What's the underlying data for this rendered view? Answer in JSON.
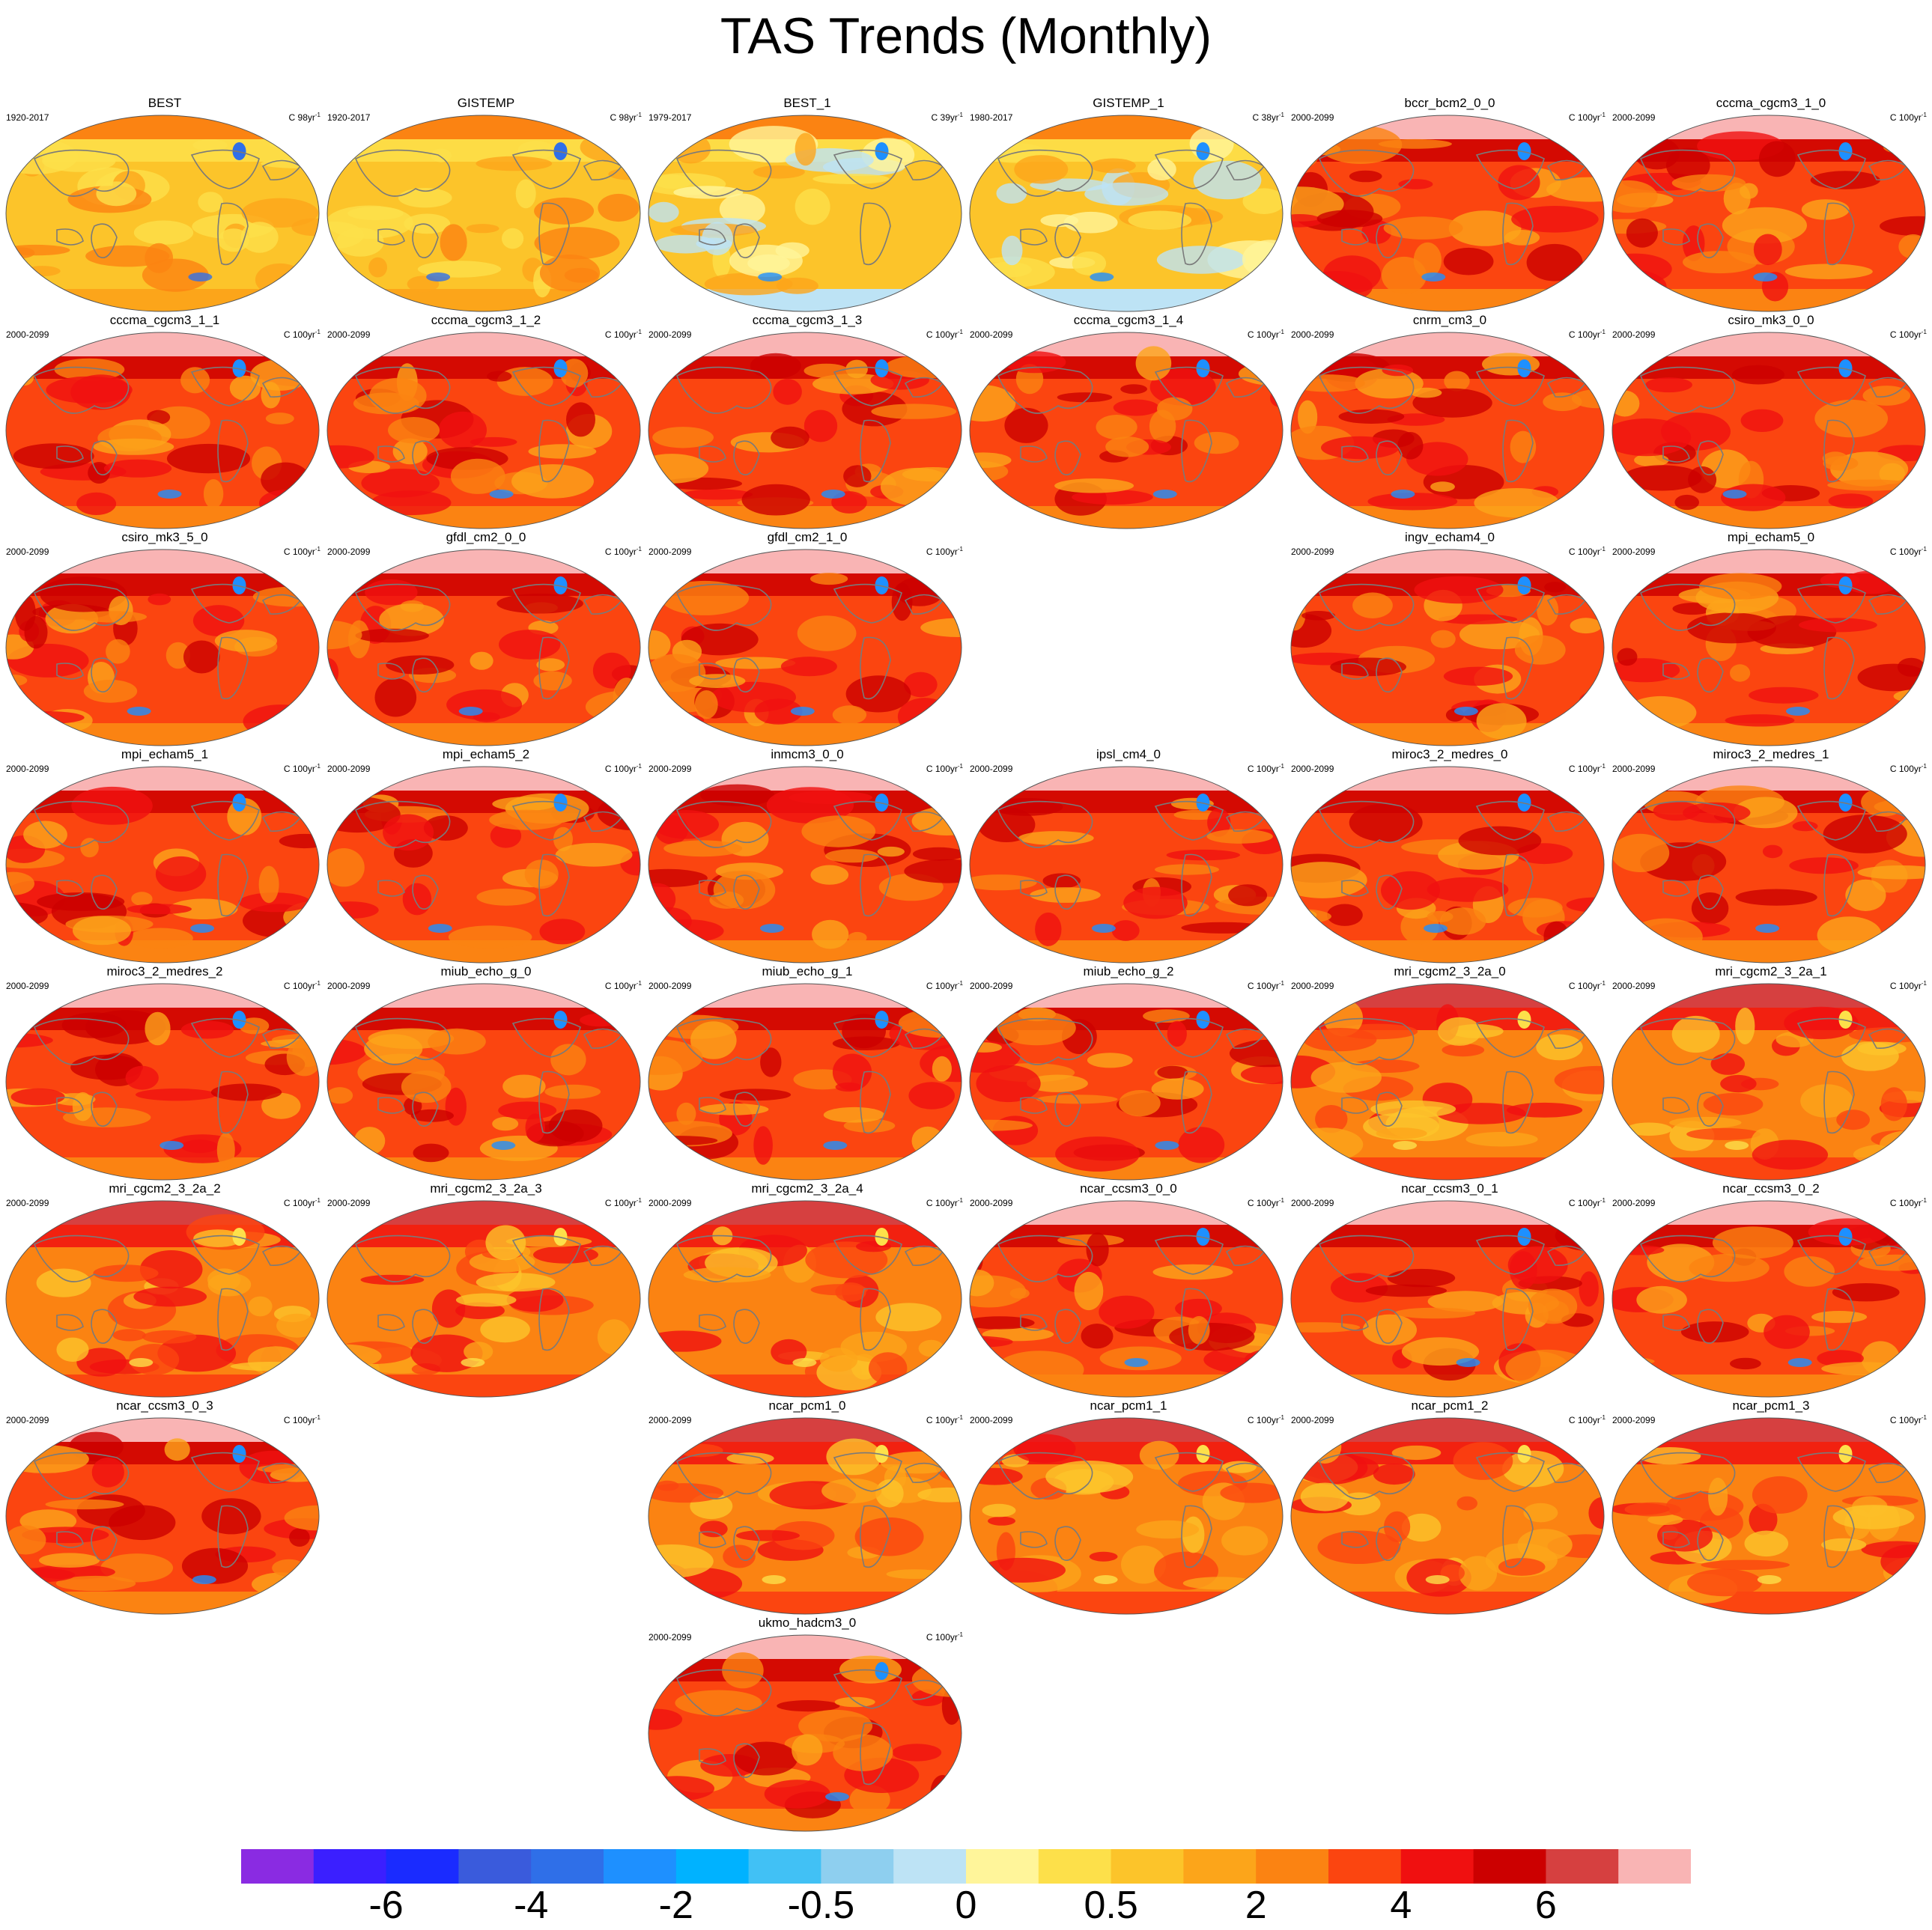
{
  "title": "TAS Trends (Monthly)",
  "panels": [
    {
      "name": "BEST",
      "period": "1920-2017",
      "units": "C 98yr",
      "palette": "obs"
    },
    {
      "name": "GISTEMP",
      "period": "1920-2017",
      "units": "C 98yr",
      "palette": "obs"
    },
    {
      "name": "BEST_1",
      "period": "1979-2017",
      "units": "C 39yr",
      "palette": "obs_recent"
    },
    {
      "name": "GISTEMP_1",
      "period": "1980-2017",
      "units": "C 38yr",
      "palette": "obs_recent"
    },
    {
      "name": "bccr_bcm2_0_0",
      "period": "2000-2099",
      "units": "C 100yr",
      "palette": "model"
    },
    {
      "name": "cccma_cgcm3_1_0",
      "period": "2000-2099",
      "units": "C 100yr",
      "palette": "model"
    },
    {
      "name": "cccma_cgcm3_1_1",
      "period": "2000-2099",
      "units": "C 100yr",
      "palette": "model"
    },
    {
      "name": "cccma_cgcm3_1_2",
      "period": "2000-2099",
      "units": "C 100yr",
      "palette": "model"
    },
    {
      "name": "cccma_cgcm3_1_3",
      "period": "2000-2099",
      "units": "C 100yr",
      "palette": "model"
    },
    {
      "name": "cccma_cgcm3_1_4",
      "period": "2000-2099",
      "units": "C 100yr",
      "palette": "model"
    },
    {
      "name": "cnrm_cm3_0",
      "period": "2000-2099",
      "units": "C 100yr",
      "palette": "model"
    },
    {
      "name": "csiro_mk3_0_0",
      "period": "2000-2099",
      "units": "C 100yr",
      "palette": "model"
    },
    {
      "name": "csiro_mk3_5_0",
      "period": "2000-2099",
      "units": "C 100yr",
      "palette": "model"
    },
    {
      "name": "gfdl_cm2_0_0",
      "period": "2000-2099",
      "units": "C 100yr",
      "palette": "model"
    },
    {
      "name": "gfdl_cm2_1_0",
      "period": "2000-2099",
      "units": "C 100yr",
      "palette": "model"
    },
    {
      "name": "",
      "period": "",
      "units": "",
      "palette": "empty"
    },
    {
      "name": "ingv_echam4_0",
      "period": "2000-2099",
      "units": "C 100yr",
      "palette": "model"
    },
    {
      "name": "mpi_echam5_0",
      "period": "2000-2099",
      "units": "C 100yr",
      "palette": "model"
    },
    {
      "name": "mpi_echam5_1",
      "period": "2000-2099",
      "units": "C 100yr",
      "palette": "model"
    },
    {
      "name": "mpi_echam5_2",
      "period": "2000-2099",
      "units": "C 100yr",
      "palette": "model"
    },
    {
      "name": "inmcm3_0_0",
      "period": "2000-2099",
      "units": "C 100yr",
      "palette": "model"
    },
    {
      "name": "ipsl_cm4_0",
      "period": "2000-2099",
      "units": "C 100yr",
      "palette": "model"
    },
    {
      "name": "miroc3_2_medres_0",
      "period": "2000-2099",
      "units": "C 100yr",
      "palette": "model"
    },
    {
      "name": "miroc3_2_medres_1",
      "period": "2000-2099",
      "units": "C 100yr",
      "palette": "model"
    },
    {
      "name": "miroc3_2_medres_2",
      "period": "2000-2099",
      "units": "C 100yr",
      "palette": "model"
    },
    {
      "name": "miub_echo_g_0",
      "period": "2000-2099",
      "units": "C 100yr",
      "palette": "model"
    },
    {
      "name": "miub_echo_g_1",
      "period": "2000-2099",
      "units": "C 100yr",
      "palette": "model"
    },
    {
      "name": "miub_echo_g_2",
      "period": "2000-2099",
      "units": "C 100yr",
      "palette": "model"
    },
    {
      "name": "mri_cgcm2_3_2a_0",
      "period": "2000-2099",
      "units": "C 100yr",
      "palette": "model_mild"
    },
    {
      "name": "mri_cgcm2_3_2a_1",
      "period": "2000-2099",
      "units": "C 100yr",
      "palette": "model_mild"
    },
    {
      "name": "mri_cgcm2_3_2a_2",
      "period": "2000-2099",
      "units": "C 100yr",
      "palette": "model_mild"
    },
    {
      "name": "mri_cgcm2_3_2a_3",
      "period": "2000-2099",
      "units": "C 100yr",
      "palette": "model_mild"
    },
    {
      "name": "mri_cgcm2_3_2a_4",
      "period": "2000-2099",
      "units": "C 100yr",
      "palette": "model_mild"
    },
    {
      "name": "ncar_ccsm3_0_0",
      "period": "2000-2099",
      "units": "C 100yr",
      "palette": "model"
    },
    {
      "name": "ncar_ccsm3_0_1",
      "period": "2000-2099",
      "units": "C 100yr",
      "palette": "model"
    },
    {
      "name": "ncar_ccsm3_0_2",
      "period": "2000-2099",
      "units": "C 100yr",
      "palette": "model"
    },
    {
      "name": "ncar_ccsm3_0_3",
      "period": "2000-2099",
      "units": "C 100yr",
      "palette": "model"
    },
    {
      "name": "",
      "period": "",
      "units": "",
      "palette": "empty"
    },
    {
      "name": "ncar_pcm1_0",
      "period": "2000-2099",
      "units": "C 100yr",
      "palette": "model_mild"
    },
    {
      "name": "ncar_pcm1_1",
      "period": "2000-2099",
      "units": "C 100yr",
      "palette": "model_mild"
    },
    {
      "name": "ncar_pcm1_2",
      "period": "2000-2099",
      "units": "C 100yr",
      "palette": "model_mild"
    },
    {
      "name": "ncar_pcm1_3",
      "period": "2000-2099",
      "units": "C 100yr",
      "palette": "model_mild"
    },
    {
      "name": "",
      "period": "",
      "units": "",
      "palette": "empty"
    },
    {
      "name": "",
      "period": "",
      "units": "",
      "palette": "empty"
    },
    {
      "name": "ukmo_hadcm3_0",
      "period": "2000-2099",
      "units": "C 100yr",
      "palette": "model"
    }
  ],
  "colorbar": {
    "colors": [
      "#8a2be2",
      "#3b1fff",
      "#1a2bff",
      "#3a5bdc",
      "#2f6fe8",
      "#1e90ff",
      "#00b2ff",
      "#41c1f5",
      "#8ecfef",
      "#bde3f5",
      "#fff59a",
      "#fde04a",
      "#fcc42a",
      "#fca51a",
      "#fb8312",
      "#fb4510",
      "#f01010",
      "#cc0000",
      "#d64040",
      "#f9b4b4"
    ],
    "labels": [
      {
        "text": "-6",
        "boundary": 2
      },
      {
        "text": "-4",
        "boundary": 4
      },
      {
        "text": "-2",
        "boundary": 6
      },
      {
        "text": "-0.5",
        "boundary": 8
      },
      {
        "text": "0",
        "boundary": 10
      },
      {
        "text": "0.5",
        "boundary": 12
      },
      {
        "text": "2",
        "boundary": 14
      },
      {
        "text": "4",
        "boundary": 16
      },
      {
        "text": "6",
        "boundary": 18
      }
    ]
  },
  "palettes": {
    "obs": {
      "base": "#fcc42a",
      "blobs": [
        "#fde04a",
        "#fca51a",
        "#fde04a",
        "#fb8312"
      ],
      "accent": "#2f6fe8",
      "pole": "#fb8312"
    },
    "obs_recent": {
      "base": "#fcc42a",
      "blobs": [
        "#fff59a",
        "#bde3f5",
        "#fde04a",
        "#fca51a"
      ],
      "accent": "#1e90ff",
      "pole": "#fb8312"
    },
    "model": {
      "base": "#fb4510",
      "blobs": [
        "#f01010",
        "#fb8312",
        "#cc0000",
        "#fca51a"
      ],
      "accent": "#1e90ff",
      "pole": "#f9b4b4"
    },
    "model_mild": {
      "base": "#fb8312",
      "blobs": [
        "#fca51a",
        "#fb4510",
        "#f01010",
        "#fcc42a"
      ],
      "accent": "#fde04a",
      "pole": "#d64040"
    }
  }
}
